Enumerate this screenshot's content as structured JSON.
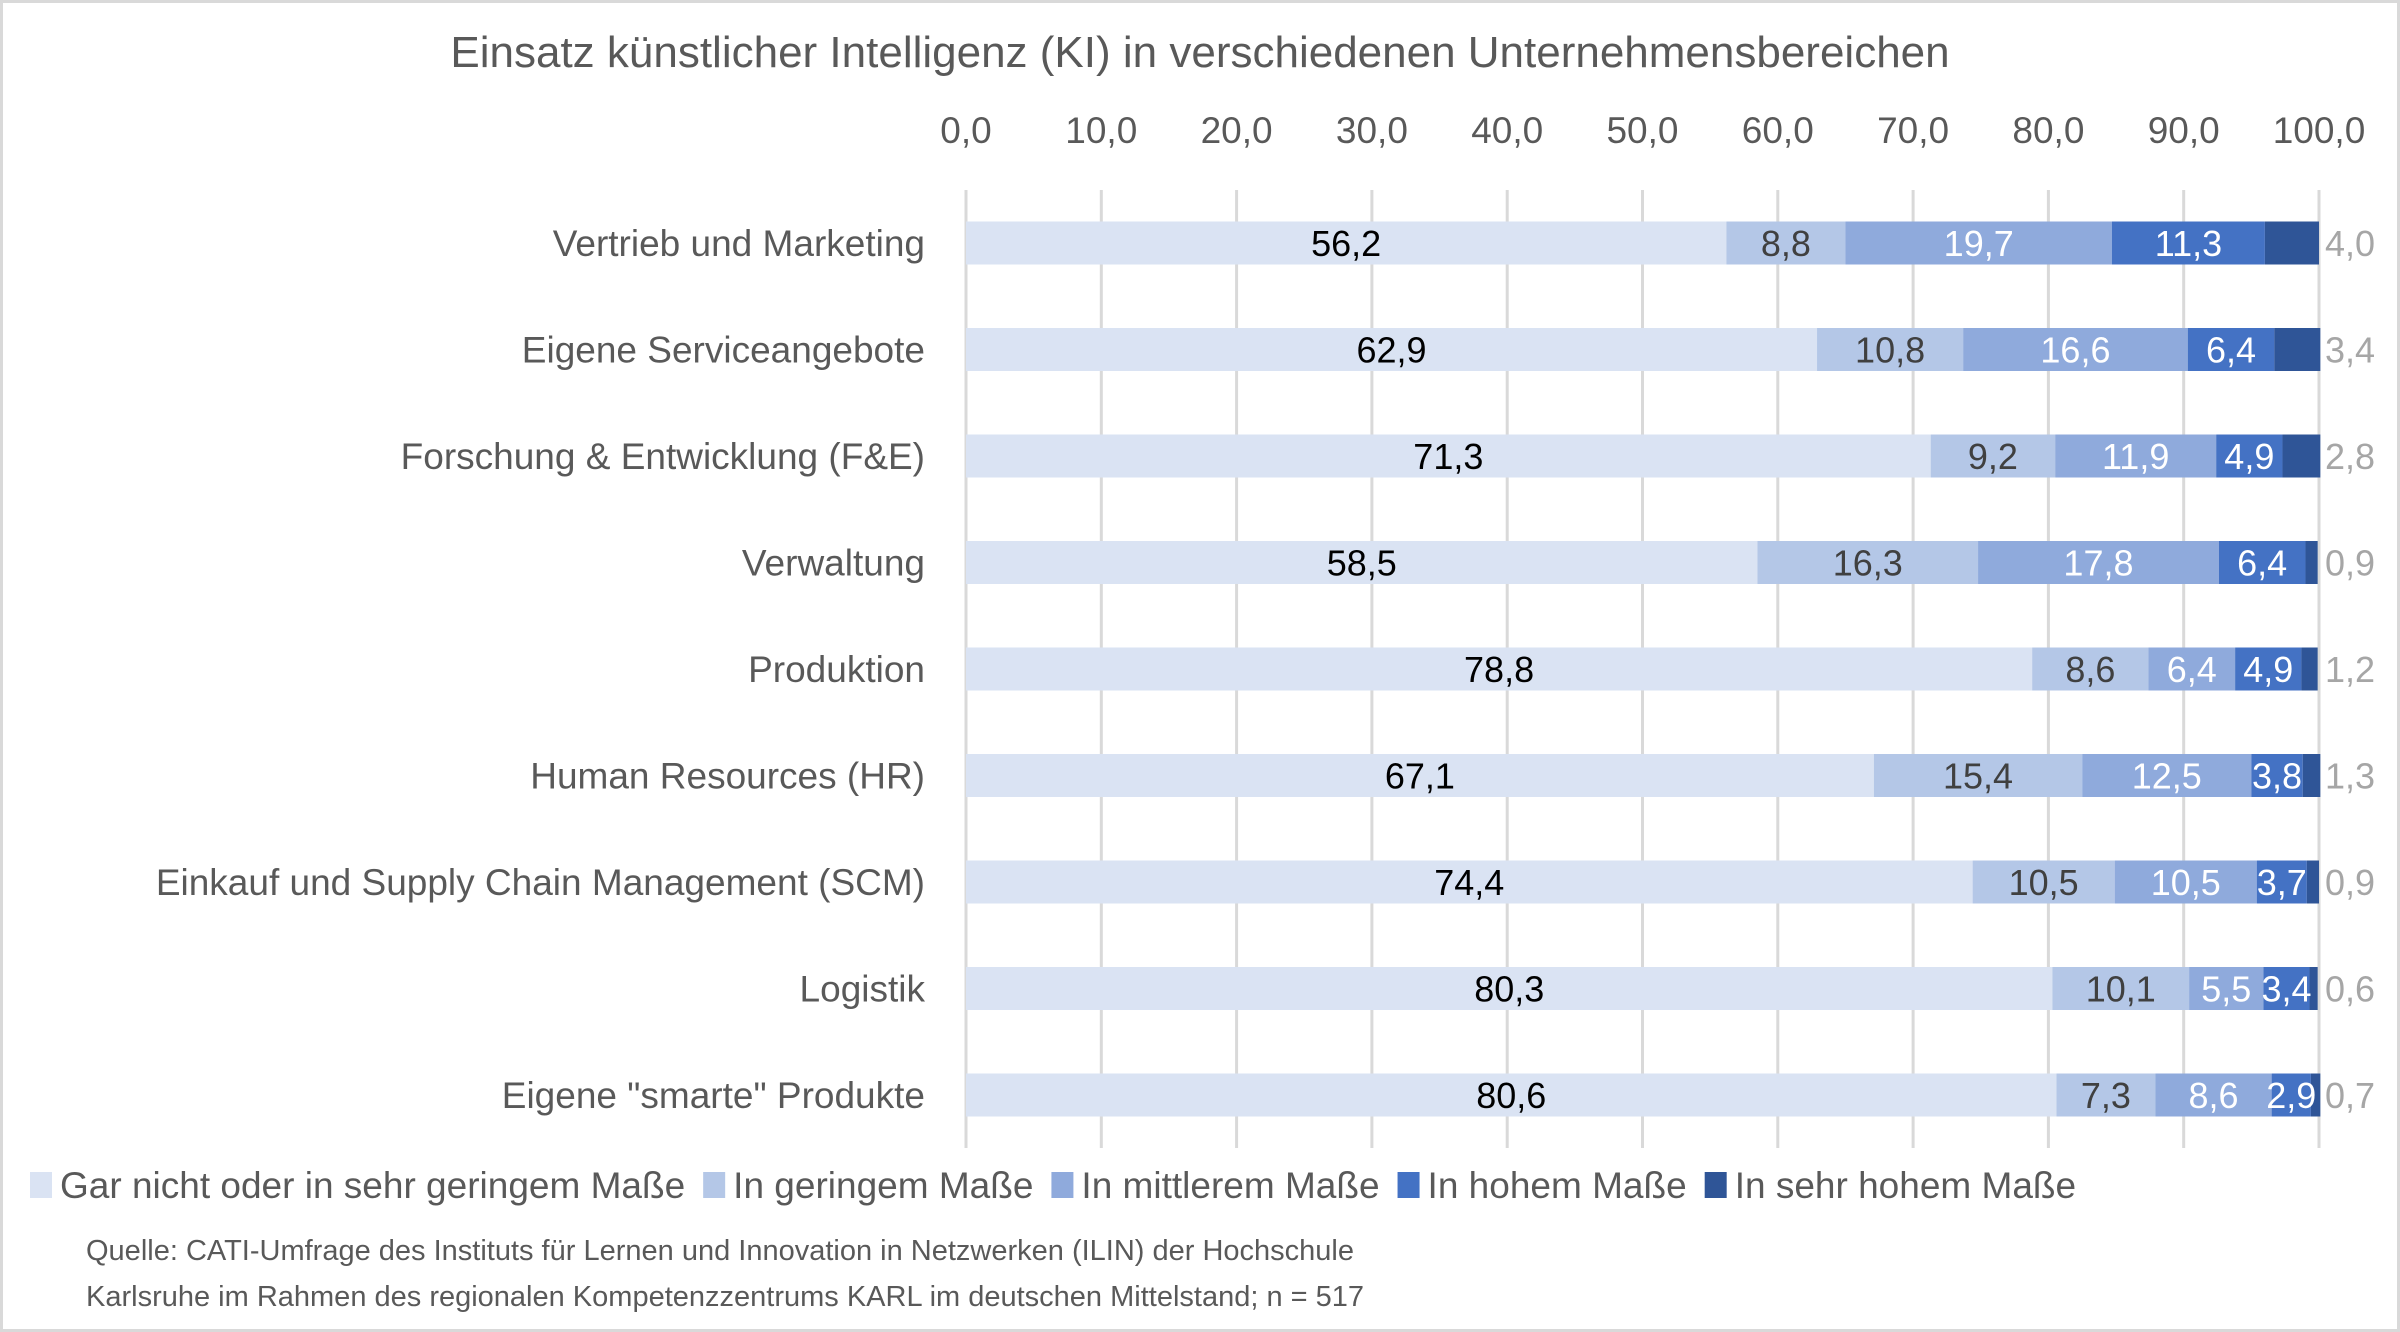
{
  "chart_data": {
    "type": "bar",
    "orientation": "horizontal",
    "stacked": true,
    "title": "Einsatz künstlicher Intelligenz (KI) in verschiedenen Unternehmensbereichen",
    "xlabel": "",
    "ylabel": "",
    "xlim": [
      0,
      100
    ],
    "x_ticks": [
      "0,0",
      "10,0",
      "20,0",
      "30,0",
      "40,0",
      "50,0",
      "60,0",
      "70,0",
      "80,0",
      "90,0",
      "100,0"
    ],
    "x_axis_position": "top",
    "grid": true,
    "legend_position": "bottom",
    "categories": [
      "Vertrieb und Marketing",
      "Eigene Serviceangebote",
      "Forschung & Entwicklung (F&E)",
      "Verwaltung",
      "Produktion",
      "Human Resources (HR)",
      "Einkauf und Supply Chain Management (SCM)",
      "Logistik",
      "Eigene \"smarte\" Produkte"
    ],
    "series": [
      {
        "name": "Gar nicht oder in sehr geringem Maße",
        "color": "#dae3f3",
        "label_color": "#000000",
        "values": [
          56.2,
          62.9,
          71.3,
          58.5,
          78.8,
          67.1,
          74.4,
          80.3,
          80.6
        ],
        "labels": [
          "56,2",
          "62,9",
          "71,3",
          "58,5",
          "78,8",
          "67,1",
          "74,4",
          "80,3",
          "80,6"
        ]
      },
      {
        "name": "In geringem Maße",
        "color": "#b4c7e7",
        "label_color": "#404040",
        "values": [
          8.8,
          10.8,
          9.2,
          16.3,
          8.6,
          15.4,
          10.5,
          10.1,
          7.3
        ],
        "labels": [
          "8,8",
          "10,8",
          "9,2",
          "16,3",
          "8,6",
          "15,4",
          "10,5",
          "10,1",
          "7,3"
        ]
      },
      {
        "name": "In mittlerem Maße",
        "color": "#8faadc",
        "label_color": "#ffffff",
        "values": [
          19.7,
          16.6,
          11.9,
          17.8,
          6.4,
          12.5,
          10.5,
          5.5,
          8.6
        ],
        "labels": [
          "19,7",
          "16,6",
          "11,9",
          "17,8",
          "6,4",
          "12,5",
          "10,5",
          "5,5",
          "8,6"
        ]
      },
      {
        "name": "In hohem Maße",
        "color": "#4472c4",
        "label_color": "#ffffff",
        "values": [
          11.3,
          6.4,
          4.9,
          6.4,
          4.9,
          3.8,
          3.7,
          3.4,
          2.9
        ],
        "labels": [
          "11,3",
          "6,4",
          "4,9",
          "6,4",
          "4,9",
          "3,8",
          "3,7",
          "3,4",
          "2,9"
        ]
      },
      {
        "name": "In sehr hohem Maße",
        "color": "#2f5597",
        "label_color": "#a6a6a6",
        "label_placement": "outside-end",
        "values": [
          4.0,
          3.4,
          2.8,
          0.9,
          1.2,
          1.3,
          0.9,
          0.6,
          0.7
        ],
        "labels": [
          "4,0",
          "3,4",
          "2,8",
          "0,9",
          "1,2",
          "1,3",
          "0,9",
          "0,6",
          "0,7"
        ]
      }
    ],
    "source_lines": [
      "Quelle: CATI-Umfrage des Instituts für Lernen und Innovation in Netzwerken (ILIN) der Hochschule",
      "Karlsruhe im Rahmen des regionalen Kompetenzzentrums KARL im deutschen Mittelstand; n = 517"
    ]
  }
}
